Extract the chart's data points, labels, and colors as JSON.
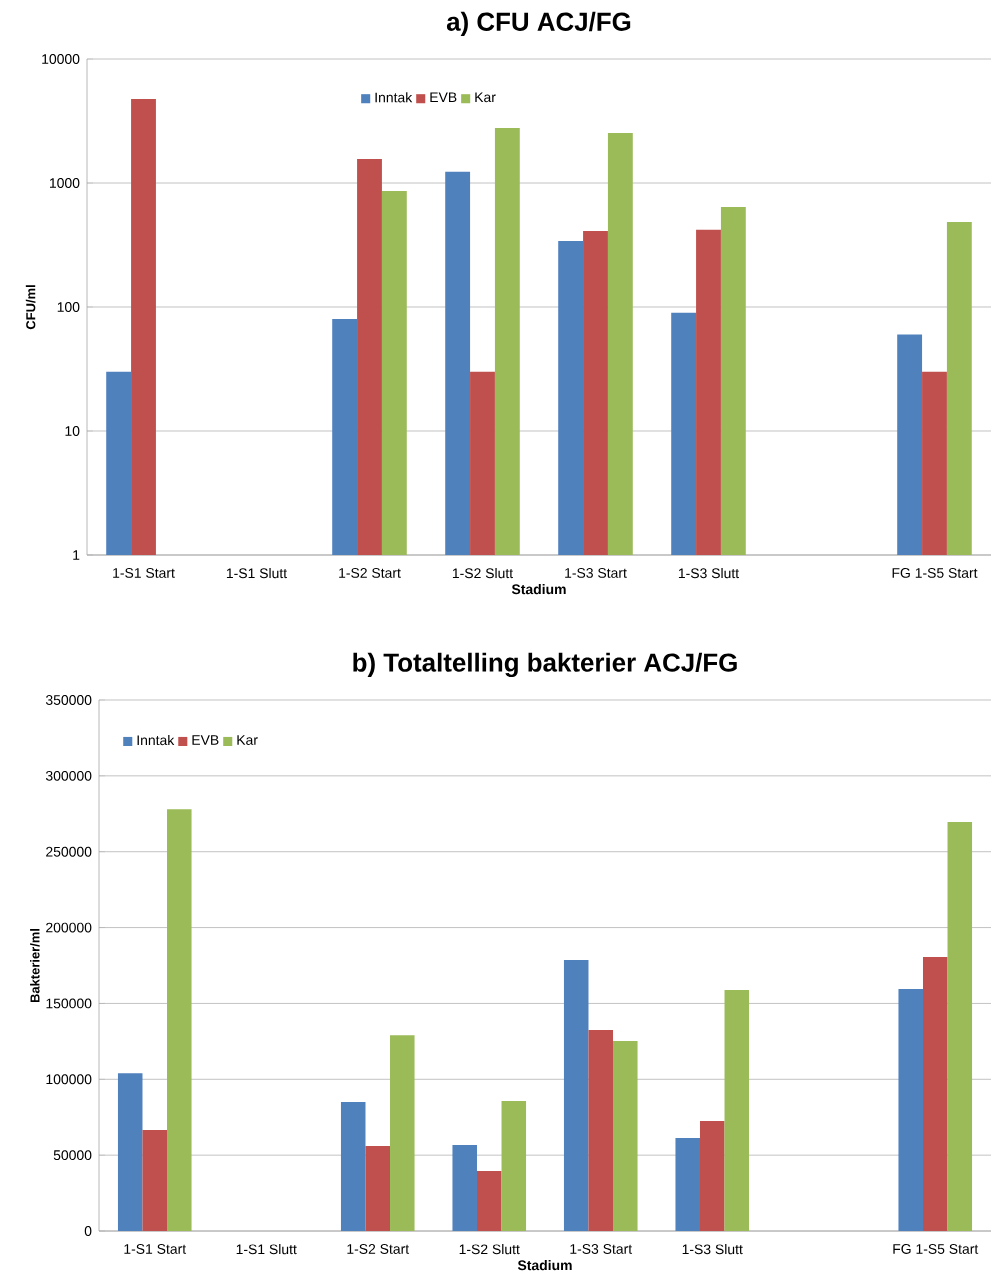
{
  "chart_data": [
    {
      "type": "bar",
      "title": "a) CFU ACJ/FG",
      "xlabel": "Stadium",
      "ylabel": "CFU/ml",
      "log": true,
      "categories": [
        "1-S1 Start",
        "1-S1 Slutt",
        "1-S2 Start",
        "1-S2 Slutt",
        "1-S3 Start",
        "1-S3 Slutt",
        null,
        "FG 1-S5 Start"
      ],
      "series": [
        {
          "name": "Inntak",
          "color": "#4f81bd",
          "values": [
            30,
            null,
            80,
            1230,
            340,
            90,
            null,
            60
          ]
        },
        {
          "name": "EVB",
          "color": "#c0504d",
          "values": [
            4750,
            null,
            1560,
            30,
            410,
            420,
            null,
            30
          ]
        },
        {
          "name": "Kar",
          "color": "#9bbb59",
          "values": [
            null,
            null,
            860,
            2780,
            2530,
            640,
            null,
            485
          ]
        }
      ],
      "ylim": [
        1,
        10000
      ],
      "yticks": [
        1,
        10,
        100,
        1000,
        10000
      ],
      "grid": "y",
      "legend": "top"
    },
    {
      "type": "bar",
      "title": "b) Totaltelling bakterier ACJ/FG",
      "xlabel": "Stadium",
      "ylabel": "Bakterier/ml",
      "categories": [
        "1-S1 Start",
        "1-S1 Slutt",
        "1-S2 Start",
        "1-S2 Slutt",
        "1-S3 Start",
        "1-S3 Slutt",
        null,
        "FG 1-S5 Start"
      ],
      "series": [
        {
          "name": "Inntak",
          "color": "#4f81bd",
          "values": [
            104000,
            null,
            85000,
            56700,
            178600,
            61300,
            null,
            159500
          ]
        },
        {
          "name": "EVB",
          "color": "#c0504d",
          "values": [
            66600,
            null,
            56000,
            39500,
            132500,
            72500,
            null,
            180600
          ]
        },
        {
          "name": "Kar",
          "color": "#9bbb59",
          "values": [
            278000,
            null,
            129000,
            85700,
            125200,
            158900,
            null,
            269600
          ]
        }
      ],
      "ylim": [
        0,
        350000
      ],
      "yticks": [
        0,
        50000,
        100000,
        150000,
        200000,
        250000,
        300000,
        350000
      ],
      "grid": "y",
      "legend": "top left"
    }
  ]
}
